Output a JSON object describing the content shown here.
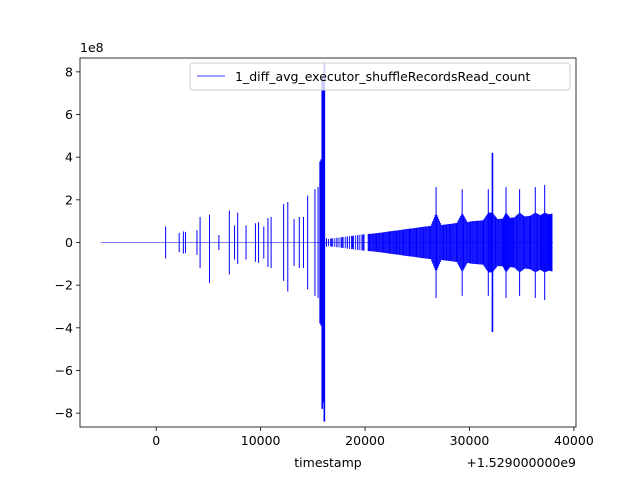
{
  "chart_data": {
    "type": "line",
    "xlabel": "timestamp",
    "ylabel": "",
    "x_offset_text": "+1.529000000e9",
    "y_offset_text": "1e8",
    "xlim": [
      -7300,
      40200
    ],
    "ylim": [
      -8.65,
      8.65
    ],
    "x_ticks": [
      0,
      10000,
      20000,
      30000,
      40000
    ],
    "x_tick_labels": [
      "0",
      "10000",
      "20000",
      "30000",
      "40000"
    ],
    "y_ticks": [
      -8,
      -6,
      -4,
      -2,
      0,
      2,
      4,
      6,
      8
    ],
    "y_tick_labels": [
      "−8",
      "−6",
      "−4",
      "−2",
      "0",
      "2",
      "4",
      "6",
      "8"
    ],
    "legend_position": "upper right",
    "series": [
      {
        "name": "1_diff_avg_executor_shuffleRecordsRead_count",
        "color": "#0000ff",
        "baseline_x": [
          -5300,
          38000
        ],
        "spikes": [
          [
            900,
            0.75,
            -0.75
          ],
          [
            2200,
            0.45,
            -0.45
          ],
          [
            2600,
            0.52,
            -0.52
          ],
          [
            2800,
            0.5,
            -0.5
          ],
          [
            3900,
            0.58,
            -0.58
          ],
          [
            4200,
            1.2,
            -1.2
          ],
          [
            5100,
            1.3,
            -1.9
          ],
          [
            6000,
            0.35,
            -0.35
          ],
          [
            7000,
            1.5,
            -1.5
          ],
          [
            7500,
            0.8,
            -0.8
          ],
          [
            7800,
            1.4,
            -1.0
          ],
          [
            8600,
            0.8,
            -0.8
          ],
          [
            9500,
            0.9,
            -0.9
          ],
          [
            9800,
            0.95,
            -0.95
          ],
          [
            10300,
            0.75,
            -0.75
          ],
          [
            10700,
            1.15,
            -1.15
          ],
          [
            11000,
            1.2,
            -1.2
          ],
          [
            12200,
            1.8,
            -1.8
          ],
          [
            12600,
            1.9,
            -2.3
          ],
          [
            13200,
            1.1,
            -1.1
          ],
          [
            13700,
            1.2,
            -1.2
          ],
          [
            14100,
            1.2,
            -1.2
          ],
          [
            14500,
            2.2,
            -2.2
          ],
          [
            15200,
            2.5,
            -2.5
          ],
          [
            15500,
            2.6,
            -2.6
          ],
          [
            15700,
            3.8,
            -3.8
          ],
          [
            15800,
            3.9,
            -3.9
          ],
          [
            15900,
            7.8,
            -7.8
          ],
          [
            16000,
            7.5,
            -7.5
          ],
          [
            16050,
            2.6,
            -2.6
          ],
          [
            16100,
            8.4,
            -8.4
          ],
          [
            16300,
            0.2,
            -0.2
          ],
          [
            16800,
            0.2,
            -0.2
          ],
          [
            17300,
            0.22,
            -0.22
          ],
          [
            17800,
            0.25,
            -0.25
          ],
          [
            18300,
            0.28,
            -0.28
          ],
          [
            18800,
            0.3,
            -0.3
          ],
          [
            19300,
            0.33,
            -0.33
          ],
          [
            19800,
            0.36,
            -0.36
          ],
          [
            20300,
            0.4,
            -0.4
          ],
          [
            20800,
            0.42,
            -0.42
          ],
          [
            21300,
            0.45,
            -0.45
          ],
          [
            21800,
            0.48,
            -0.48
          ],
          [
            22300,
            0.52,
            -0.52
          ],
          [
            22800,
            0.55,
            -0.55
          ],
          [
            23300,
            0.58,
            -0.58
          ],
          [
            23800,
            0.62,
            -0.62
          ],
          [
            24300,
            0.65,
            -0.65
          ],
          [
            24800,
            0.68,
            -0.68
          ],
          [
            25300,
            0.72,
            -0.72
          ],
          [
            25800,
            0.75,
            -0.75
          ],
          [
            26300,
            0.78,
            -0.78
          ],
          [
            26800,
            2.6,
            -2.6
          ],
          [
            27300,
            0.82,
            -0.82
          ],
          [
            27800,
            0.85,
            -0.85
          ],
          [
            28300,
            0.88,
            -0.88
          ],
          [
            28800,
            0.92,
            -0.92
          ],
          [
            29300,
            2.5,
            -2.5
          ],
          [
            29800,
            0.96,
            -0.96
          ],
          [
            30300,
            1.0,
            -1.0
          ],
          [
            30800,
            1.02,
            -1.02
          ],
          [
            31300,
            1.04,
            -1.04
          ],
          [
            31800,
            2.5,
            -2.5
          ],
          [
            32200,
            4.2,
            -4.2
          ],
          [
            32700,
            1.1,
            -1.1
          ],
          [
            33200,
            1.12,
            -1.12
          ],
          [
            33500,
            2.6,
            -2.6
          ],
          [
            33900,
            1.15,
            -1.15
          ],
          [
            34300,
            1.18,
            -1.18
          ],
          [
            34800,
            2.5,
            -2.5
          ],
          [
            35300,
            1.22,
            -1.22
          ],
          [
            35800,
            1.25,
            -1.25
          ],
          [
            36300,
            2.6,
            -2.6
          ],
          [
            36800,
            1.28,
            -1.28
          ],
          [
            37200,
            2.7,
            -2.7
          ],
          [
            37600,
            1.32,
            -1.32
          ],
          [
            37900,
            1.35,
            -1.35
          ]
        ]
      }
    ]
  }
}
